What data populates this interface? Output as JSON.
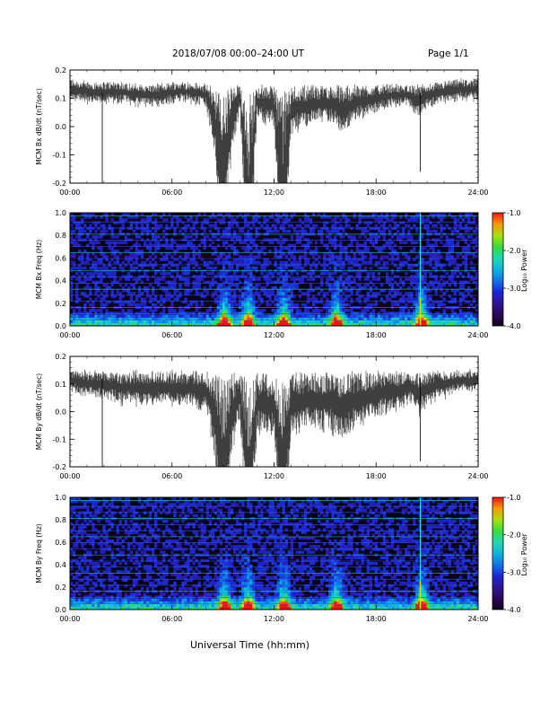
{
  "header": {
    "title": "2018/07/08   00:00–24:00 UT",
    "page": "Page 1/1"
  },
  "xlabel": "Universal Time (hh:mm)",
  "x_ticks": [
    "00:00",
    "06:00",
    "12:00",
    "18:00",
    "24:00"
  ],
  "colors": {
    "trace": "#000000",
    "background_spec": "#080018"
  },
  "chart_data": [
    {
      "type": "line",
      "ylabel": "MCM Bx dB/dt (nT/sec)",
      "xlim": [
        0,
        24
      ],
      "ylim": [
        -0.2,
        0.2
      ],
      "yticks": [
        "0.2",
        "0.1",
        "0.0",
        "-0.1",
        "-0.2"
      ],
      "series": [
        {
          "x": [
            0,
            1,
            2,
            3,
            4,
            5,
            6,
            7,
            8,
            8.5,
            9,
            9.5,
            10,
            10.5,
            11,
            12,
            12.5,
            13,
            14,
            15,
            16,
            17,
            18,
            19,
            20,
            20.5,
            21,
            22,
            23,
            24
          ],
          "y_center": [
            0.14,
            0.13,
            0.13,
            0.13,
            0.12,
            0.12,
            0.13,
            0.13,
            0.12,
            0.05,
            -0.12,
            0.05,
            0.11,
            -0.18,
            0.1,
            0.09,
            -0.15,
            0.08,
            0.09,
            0.1,
            0.08,
            0.1,
            0.11,
            0.12,
            0.12,
            0.1,
            0.12,
            0.13,
            0.14,
            0.14
          ]
        }
      ],
      "spikes": [
        {
          "x": 1.9,
          "y": -0.2
        },
        {
          "x": 20.6,
          "y": -0.16
        }
      ]
    },
    {
      "type": "heatmap",
      "ylabel": "MCM Bx Freq (Hz)",
      "xlim": [
        0,
        24
      ],
      "ylim": [
        0,
        1.0
      ],
      "yticks": [
        "1.0",
        "0.8",
        "0.6",
        "0.4",
        "0.2",
        "0.0"
      ],
      "colorbar": {
        "label": "Log₁₀ Power",
        "range": [
          -4.0,
          -1.0
        ],
        "ticks": [
          "-1.0",
          "-2.0",
          "-3.0",
          "-4.0"
        ]
      },
      "events": [
        9.0,
        10.4,
        12.5,
        15.6,
        20.6
      ]
    },
    {
      "type": "line",
      "ylabel": "MCM By dB/dt (nT/sec)",
      "xlim": [
        0,
        24
      ],
      "ylim": [
        -0.2,
        0.2
      ],
      "yticks": [
        "0.2",
        "0.1",
        "0.0",
        "-0.1",
        "-0.2"
      ],
      "series": [
        {
          "x": [
            0,
            1,
            2,
            3,
            4,
            5,
            6,
            7,
            8,
            8.5,
            9,
            9.5,
            10,
            10.5,
            11,
            12,
            12.5,
            13,
            14,
            15,
            16,
            17,
            18,
            19,
            20,
            20.5,
            21,
            22,
            23,
            24
          ],
          "y_center": [
            0.12,
            0.11,
            0.11,
            0.1,
            0.1,
            0.1,
            0.1,
            0.1,
            0.09,
            0.02,
            -0.15,
            0.02,
            0.08,
            -0.17,
            0.06,
            0.05,
            -0.15,
            0.05,
            0.07,
            0.06,
            0.05,
            0.07,
            0.08,
            0.09,
            0.1,
            0.08,
            0.1,
            0.11,
            0.12,
            0.12
          ]
        }
      ],
      "spikes": [
        {
          "x": 1.9,
          "y": -0.2
        },
        {
          "x": 20.6,
          "y": -0.18
        }
      ]
    },
    {
      "type": "heatmap",
      "ylabel": "MCM By Freq (Hz)",
      "xlim": [
        0,
        24
      ],
      "ylim": [
        0,
        1.0
      ],
      "yticks": [
        "1.0",
        "0.8",
        "0.6",
        "0.4",
        "0.2",
        "0.0"
      ],
      "colorbar": {
        "label": "Log₁₀ Power",
        "range": [
          -4.0,
          -1.0
        ],
        "ticks": [
          "-1.0",
          "-2.0",
          "-3.0",
          "-4.0"
        ]
      },
      "events": [
        9.0,
        10.4,
        12.5,
        15.6,
        20.6
      ]
    }
  ]
}
